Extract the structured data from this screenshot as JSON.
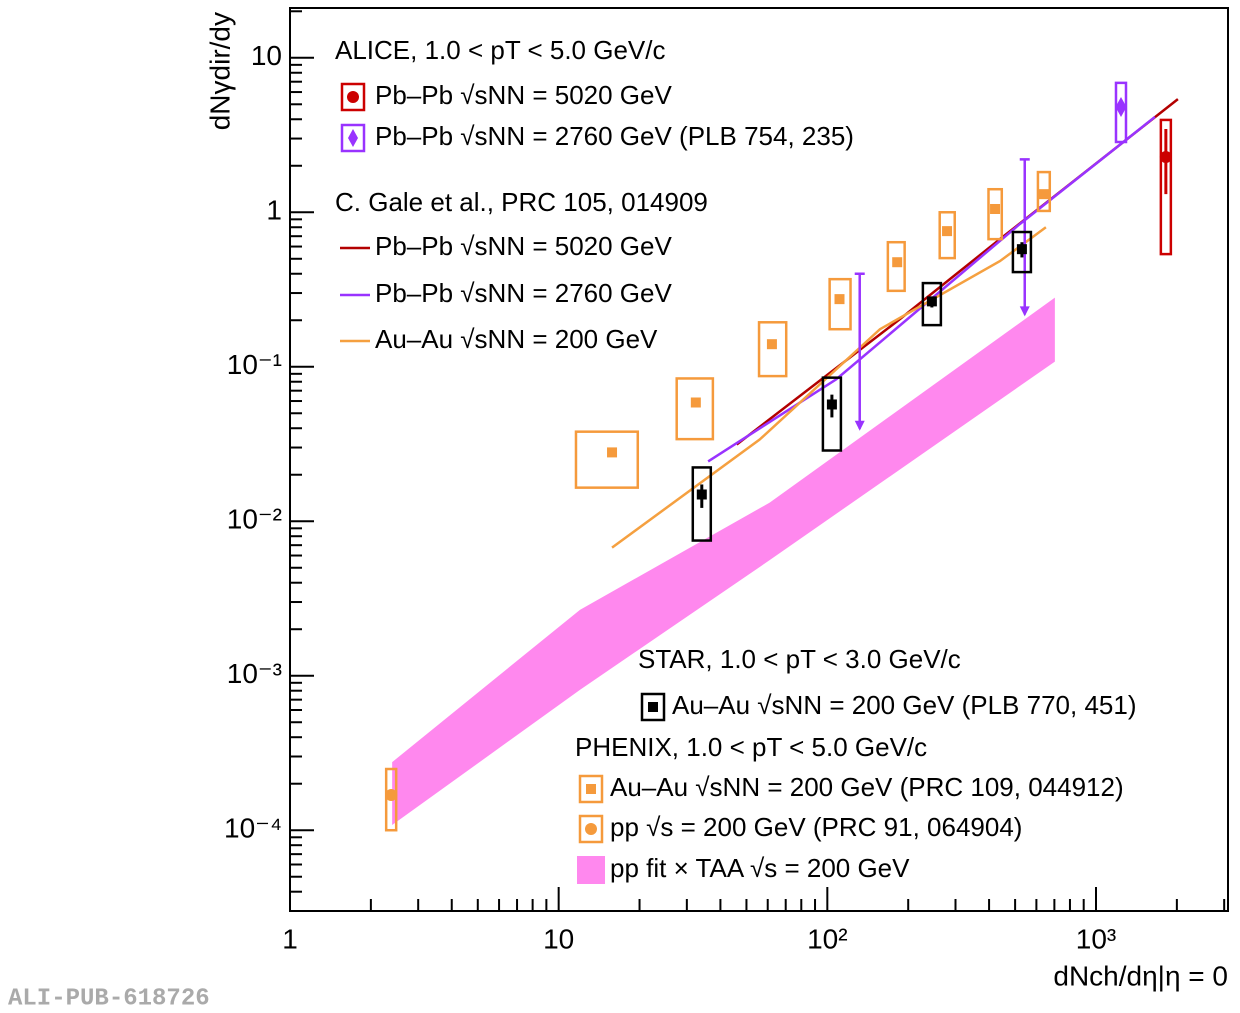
{
  "chart_data": {
    "type": "scatter",
    "log_x": true,
    "log_y": true,
    "minor_ticks": true,
    "x_label": "dNch/dη|η = 0",
    "y_label": "dNγdir/dy",
    "xlim": [
      1,
      3100
    ],
    "ylim": [
      3e-05,
      21
    ],
    "xticks": [
      1,
      10,
      {
        "value": 100,
        "label": "10²"
      },
      {
        "value": 1000,
        "label": "10³"
      }
    ],
    "yticks": [
      {
        "value": 0.0001,
        "label": "10⁻⁴"
      },
      {
        "value": 0.001,
        "label": "10⁻³"
      },
      {
        "value": 0.01,
        "label": "10⁻²"
      },
      {
        "value": 0.1,
        "label": "10⁻¹"
      },
      1,
      10
    ],
    "annotations": [
      "ALICE, 1.0 < pT < 5.0 GeV/c",
      "C. Gale et al., PRC 105, 014909",
      "STAR, 1.0 < pT < 3.0 GeV/c",
      "PHENIX, 1.0 < pT < 5.0 GeV/c"
    ],
    "watermark": "ALI-PUB-618726",
    "series": [
      {
        "name": "Pb–Pb √sNN = 5020 GeV",
        "kind": "marker",
        "marker": "circle",
        "color": "#cc0000",
        "x": [
          1820
        ],
        "y": [
          2.28
        ],
        "y_stat_low": [
          1.31
        ],
        "y_stat_high": [
          3.46
        ],
        "y_sys_low": [
          0.536
        ],
        "y_sys_high": [
          3.96
        ]
      },
      {
        "name": "Pb–Pb √sNN = 2760 GeV (PLB 754, 235)",
        "kind": "marker",
        "marker": "diamond",
        "color": "#9933ff",
        "x": [
          1239
        ],
        "y": [
          4.8
        ],
        "y_sys_low": [
          2.85
        ],
        "y_sys_high": [
          6.88
        ],
        "upper_limits": {
          "x": [
            132,
            543
          ],
          "y": [
            0.4,
            2.2
          ]
        }
      },
      {
        "name": "Pb–Pb √sNN = 5020 GeV",
        "kind": "line",
        "color": "#b30000",
        "x": [
          46,
          186,
          439,
          2018
        ],
        "y": [
          0.0314,
          0.203,
          0.67,
          5.4
        ]
      },
      {
        "name": "Pb–Pb √sNN = 2760 GeV",
        "kind": "line",
        "color": "#9933ff",
        "x": [
          36,
          108,
          521,
          1657
        ],
        "y": [
          0.0244,
          0.083,
          0.84,
          4.14
        ]
      },
      {
        "name": "Au–Au √sNN = 200 GeV",
        "kind": "line",
        "color": "#f5a040",
        "x": [
          15.8,
          56,
          157,
          439,
          651
        ],
        "y": [
          0.00675,
          0.0338,
          0.175,
          0.483,
          0.8
        ]
      },
      {
        "name": "Au–Au √sNN = 200 GeV (PLB 770, 451)",
        "kind": "marker",
        "marker": "square",
        "color": "#000000",
        "x": [
          34.1,
          104,
          245,
          530
        ],
        "y": [
          0.0149,
          0.057,
          0.265,
          0.577
        ],
        "y_stat_low": [
          0.0122,
          0.047,
          0.242,
          0.51
        ],
        "y_stat_high": [
          0.0173,
          0.066,
          0.285,
          0.64
        ],
        "y_sys_low": [
          0.0075,
          0.0287,
          0.186,
          0.41
        ],
        "y_sys_high": [
          0.0223,
          0.085,
          0.348,
          0.745
        ]
      },
      {
        "name": "Au–Au √sNN = 200 GeV (PRC 109, 044912)",
        "kind": "marker",
        "marker": "square",
        "color": "#f59a3c",
        "x": [
          15.8,
          32.4,
          62.2,
          111,
          182,
          279,
          421,
          640
        ],
        "y": [
          0.0279,
          0.0587,
          0.14,
          0.274,
          0.475,
          0.755,
          1.05,
          1.31
        ],
        "y_sys_low": [
          0.0165,
          0.034,
          0.087,
          0.175,
          0.31,
          0.505,
          0.67,
          1.02
        ],
        "y_sys_high": [
          0.038,
          0.084,
          0.194,
          0.369,
          0.64,
          1.0,
          1.41,
          1.82
        ],
        "x_low": [
          11.6,
          27.5,
          55.7,
          102,
          168,
          262,
          398,
          608
        ],
        "x_high": [
          19.7,
          37.5,
          70.3,
          122,
          194,
          298,
          446,
          673
        ]
      },
      {
        "name": "pp √s = 200 GeV (PRC 91, 064904)",
        "kind": "marker",
        "marker": "circle",
        "color": "#f59a3c",
        "x": [
          2.38
        ],
        "y": [
          0.000169
        ],
        "y_sys_low": [
          0.0001
        ],
        "y_sys_high": [
          0.000249
        ]
      },
      {
        "name": "pp fit × TAA √s = 200 GeV",
        "kind": "band",
        "color": "#ff88ee",
        "x": [
          2.4,
          12.0,
          61,
          703
        ],
        "y_low": [
          0.000108,
          0.00081,
          0.0056,
          0.108
        ],
        "y_high": [
          0.000276,
          0.00267,
          0.0132,
          0.28
        ]
      }
    ]
  }
}
